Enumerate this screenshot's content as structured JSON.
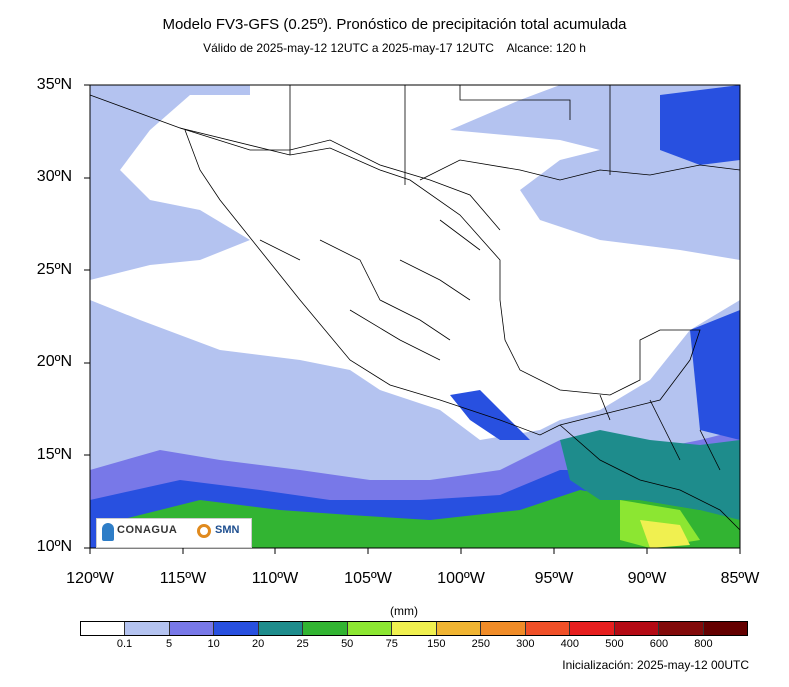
{
  "title": "Modelo FV3-GFS (0.25º). Pronóstico de precipitación total acumulada",
  "subtitle": "Válido de 2025-may-12 12UTC a 2025-may-17 12UTC    Alcance: 120 h",
  "y_ticks": [
    "35ºN",
    "30ºN",
    "25ºN",
    "20ºN",
    "15ºN",
    "10ºN"
  ],
  "x_ticks": [
    "120ºW",
    "115ºW",
    "110ºW",
    "105ºW",
    "100ºW",
    "95ºW",
    "90ºW",
    "85ºW"
  ],
  "units": "(mm)",
  "colorbar": {
    "labels": [
      "0.1",
      "5",
      "10",
      "20",
      "25",
      "50",
      "75",
      "150",
      "250",
      "300",
      "400",
      "500",
      "600",
      "800"
    ],
    "colors": [
      "#ffffff",
      "#b4c3f0",
      "#7878e8",
      "#2850e0",
      "#1e8c8c",
      "#32b432",
      "#8ce632",
      "#f0f050",
      "#f0b432",
      "#f08c28",
      "#f05028",
      "#e61e1e",
      "#b40a14",
      "#820a0a",
      "#640000"
    ]
  },
  "initialization": "Inicialización: 2025-may-12 00UTC",
  "logos": {
    "left": "CONAGUA",
    "right": "SMN"
  },
  "map_extent": {
    "lon": [
      -120,
      -85
    ],
    "lat": [
      10,
      35
    ]
  },
  "colors": {
    "frame": "#000000",
    "borders": "#000000"
  }
}
